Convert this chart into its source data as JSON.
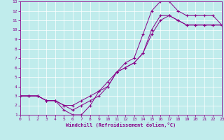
{
  "xlabel": "Windchill (Refroidissement éolien,°C)",
  "bg_color": "#c0ecec",
  "line_color": "#880088",
  "marker": "+",
  "x_data": [
    0,
    1,
    2,
    3,
    4,
    5,
    6,
    7,
    8,
    9,
    10,
    11,
    12,
    13,
    14,
    15,
    16,
    17,
    18,
    19,
    20,
    21,
    22,
    23
  ],
  "series1": [
    3,
    3,
    3,
    2.5,
    2.5,
    1.5,
    1.0,
    1.0,
    2.0,
    3.5,
    4.0,
    5.5,
    6.5,
    7.0,
    9.5,
    12.0,
    13.0,
    13.0,
    12.0,
    11.5,
    11.5,
    11.5,
    11.5,
    10.5
  ],
  "series2": [
    3,
    3,
    3,
    2.5,
    2.5,
    2.0,
    1.5,
    2.0,
    2.5,
    3.0,
    4.0,
    5.5,
    6.0,
    6.5,
    7.5,
    10.0,
    11.5,
    11.5,
    11.0,
    10.5,
    10.5,
    10.5,
    10.5,
    10.5
  ],
  "series3": [
    3,
    3,
    3,
    2.5,
    2.5,
    2.0,
    2.0,
    2.5,
    3.0,
    3.5,
    4.5,
    5.5,
    6.0,
    6.5,
    7.5,
    9.5,
    11.0,
    11.5,
    11.0,
    10.5,
    10.5,
    10.5,
    10.5,
    10.5
  ],
  "xlim": [
    0,
    23
  ],
  "ylim": [
    1,
    13
  ],
  "xticks": [
    0,
    1,
    2,
    3,
    4,
    5,
    6,
    7,
    8,
    9,
    10,
    11,
    12,
    13,
    14,
    15,
    16,
    17,
    18,
    19,
    20,
    21,
    22,
    23
  ],
  "yticks": [
    1,
    2,
    3,
    4,
    5,
    6,
    7,
    8,
    9,
    10,
    11,
    12,
    13
  ],
  "grid_color": "#ffffff",
  "spine_color": "#880088",
  "tick_label_size": 4.5,
  "xlabel_size": 5.0
}
